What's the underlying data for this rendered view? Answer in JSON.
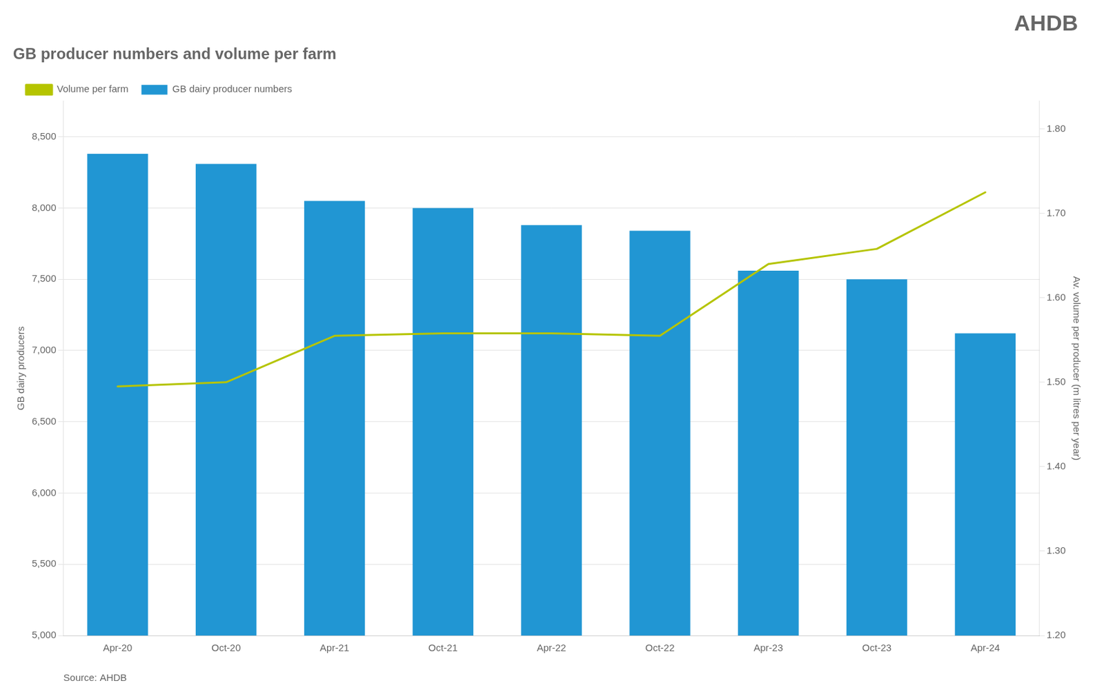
{
  "chart_data": {
    "type": "bar",
    "title": "GB producer numbers and volume per farm",
    "categories": [
      "Apr-20",
      "Oct-20",
      "Apr-21",
      "Oct-21",
      "Apr-22",
      "Oct-22",
      "Apr-23",
      "Oct-23",
      "Apr-24"
    ],
    "series": [
      {
        "name": "GB dairy producer numbers",
        "type": "bar",
        "color": "#2196d3",
        "values": [
          8380,
          8310,
          8050,
          8000,
          7880,
          7840,
          7560,
          7500,
          7120
        ]
      },
      {
        "name": "Volume per farm",
        "type": "line",
        "color": "#b5c400",
        "axis": "y2",
        "values": [
          1.495,
          1.5,
          1.555,
          1.558,
          1.558,
          1.555,
          1.64,
          1.658,
          1.725
        ]
      }
    ],
    "ylabel": "GB dairy producers",
    "y2label": "Av. volume per producer (m litres per year)",
    "ylim": [
      5000,
      8750
    ],
    "yticks": [
      {
        "value": 5000,
        "label": "5,000"
      },
      {
        "value": 5500,
        "label": "5,500"
      },
      {
        "value": 6000,
        "label": "6,000"
      },
      {
        "value": 6500,
        "label": "6,500"
      },
      {
        "value": 7000,
        "label": "7,000"
      },
      {
        "value": 7500,
        "label": "7,500"
      },
      {
        "value": 8000,
        "label": "8,000"
      },
      {
        "value": 8500,
        "label": "8,500"
      }
    ],
    "y2lim": [
      1.2,
      1.833
    ],
    "y2ticks": [
      {
        "value": 1.2,
        "label": "1.20"
      },
      {
        "value": 1.3,
        "label": "1.30"
      },
      {
        "value": 1.4,
        "label": "1.40"
      },
      {
        "value": 1.5,
        "label": "1.50"
      },
      {
        "value": 1.6,
        "label": "1.60"
      },
      {
        "value": 1.7,
        "label": "1.70"
      },
      {
        "value": 1.8,
        "label": "1.80"
      }
    ],
    "grid": true,
    "legend": "upper left",
    "annotations": [
      "Source: AHDB",
      "AHDB"
    ]
  }
}
